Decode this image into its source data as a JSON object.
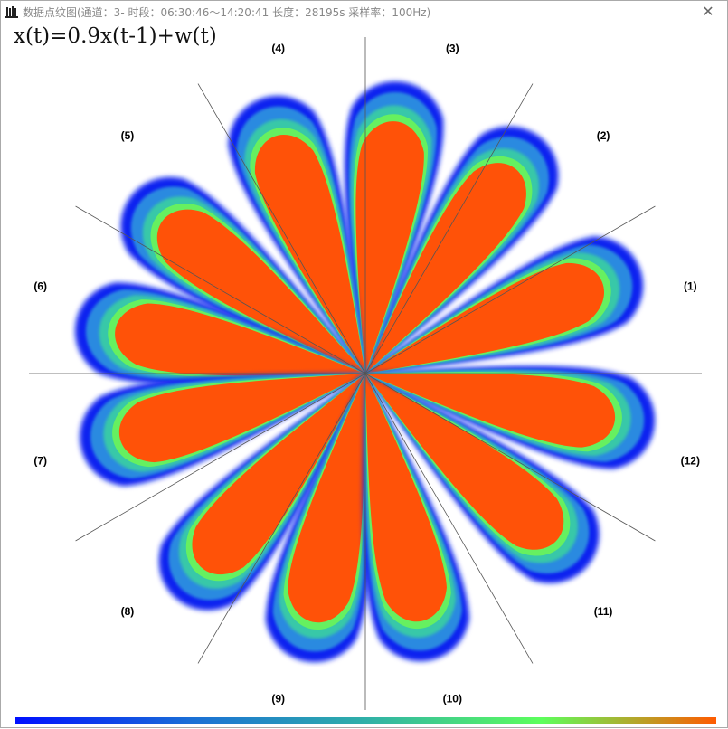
{
  "window": {
    "title": "数据点纹图(通道：3- 时段：06:30:46～14:20:41 长度：28195s 采样率：100Hz)",
    "app_icon": "bar-chart-icon",
    "close_icon": "close-icon",
    "close_glyph": "✕"
  },
  "chart_data": {
    "type": "scatter",
    "subtype": "polar density petal plot",
    "title": "x(t)=0.9x(t-1)+w(t)",
    "sectors": [
      "(1)",
      "(2)",
      "(3)",
      "(4)",
      "(5)",
      "(6)",
      "(7)",
      "(8)",
      "(9)",
      "(10)",
      "(11)",
      "(12)"
    ],
    "sector_count": 12,
    "sector_divider_angle_deg": 30,
    "grid": true,
    "colorbar": {
      "colors": [
        "#0010ff",
        "#1a6fd6",
        "#2fb0a8",
        "#5cff5c",
        "#ff5a00"
      ],
      "orientation": "horizontal",
      "placement": "bottom"
    },
    "density_colors": {
      "low": "#0a22f0",
      "mid_low": "#2a8ae0",
      "mid": "#38c8a8",
      "mid_high": "#66f060",
      "high": "#ff5208"
    }
  }
}
